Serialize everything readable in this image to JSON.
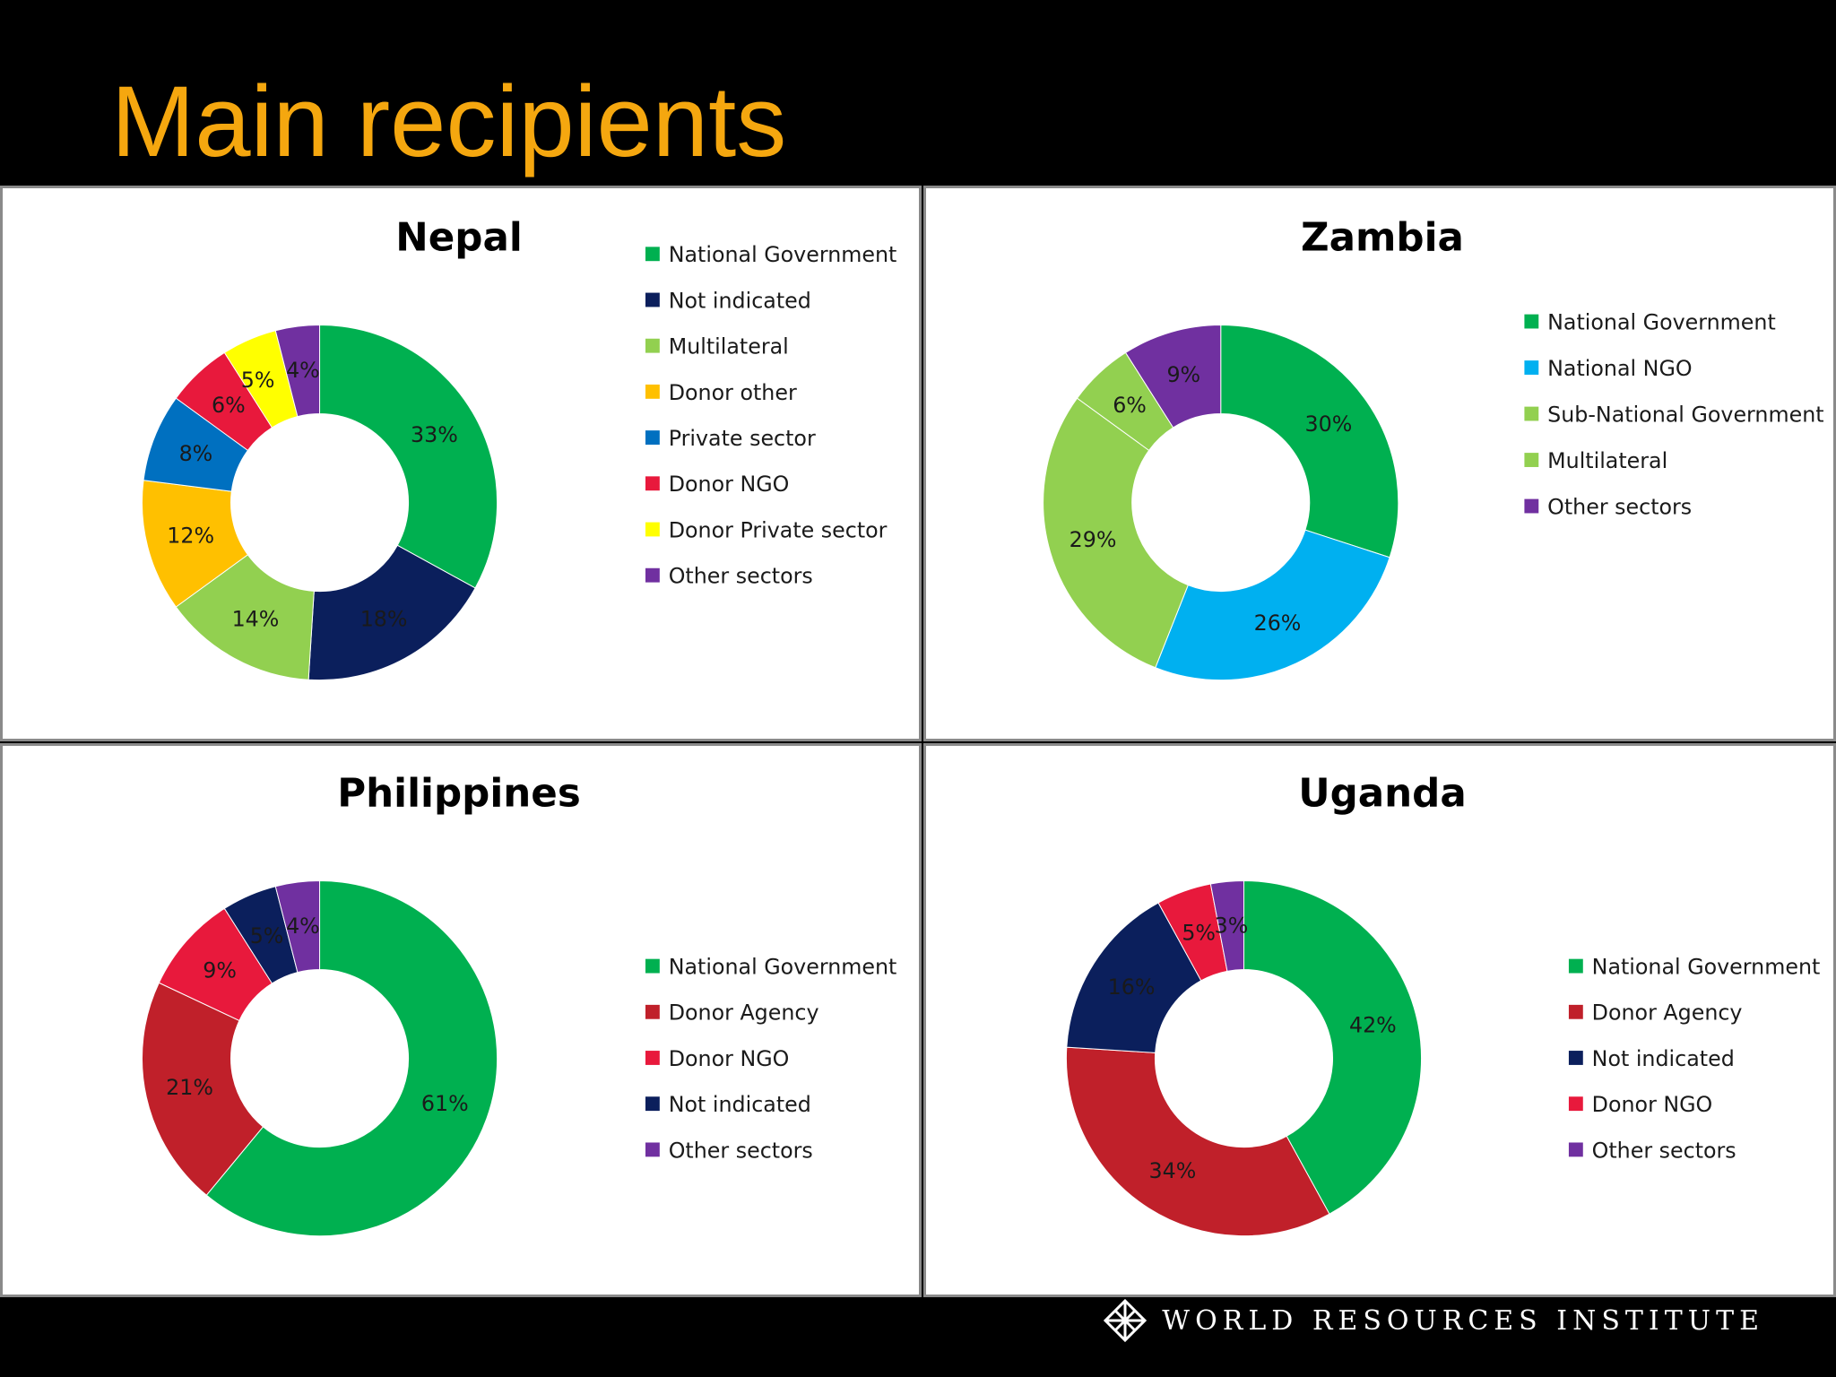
{
  "title": "Main recipients",
  "footer": {
    "logo_text": "WORLD RESOURCES INSTITUTE"
  },
  "colors": {
    "National Government": "#00b050",
    "Not indicated": "#0b1f5c",
    "Multilateral": "#92d050",
    "Donor other": "#ffc000",
    "Private sector": "#0070c0",
    "Donor NGO": "#e8193c",
    "Donor Private sector": "#ffff00",
    "Other sectors": "#7030a0",
    "National NGO": "#00b0f0",
    "Sub-National Government": "#92d050",
    "Donor Agency": "#c0202a"
  },
  "chart_data": [
    {
      "type": "pie",
      "title": "Nepal",
      "legend_position": "right",
      "slices": [
        {
          "label": "National Government",
          "value": 33,
          "text": "33%"
        },
        {
          "label": "Not indicated",
          "value": 18,
          "text": "18%"
        },
        {
          "label": "Multilateral",
          "value": 14,
          "text": "14%"
        },
        {
          "label": "Donor other",
          "value": 12,
          "text": "12%"
        },
        {
          "label": "Private sector",
          "value": 8,
          "text": "8%"
        },
        {
          "label": "Donor NGO",
          "value": 6,
          "text": "6%"
        },
        {
          "label": "Donor Private sector",
          "value": 5,
          "text": "5%"
        },
        {
          "label": "Other sectors",
          "value": 4,
          "text": "4%"
        }
      ]
    },
    {
      "type": "pie",
      "title": "Zambia",
      "legend_position": "right",
      "slices": [
        {
          "label": "National Government",
          "value": 30,
          "text": "30%"
        },
        {
          "label": "National NGO",
          "value": 26,
          "text": "26%"
        },
        {
          "label": "Sub-National Government",
          "value": 29,
          "text": "29%"
        },
        {
          "label": "Multilateral",
          "value": 6,
          "text": "6%"
        },
        {
          "label": "Other sectors",
          "value": 9,
          "text": "9%"
        }
      ]
    },
    {
      "type": "pie",
      "title": "Philippines",
      "legend_position": "right",
      "slices": [
        {
          "label": "National Government",
          "value": 61,
          "text": "61%"
        },
        {
          "label": "Donor Agency",
          "value": 21,
          "text": "21%"
        },
        {
          "label": "Donor NGO",
          "value": 9,
          "text": "9%"
        },
        {
          "label": "Not indicated",
          "value": 5,
          "text": "5%"
        },
        {
          "label": "Other sectors",
          "value": 4,
          "text": "4%"
        }
      ]
    },
    {
      "type": "pie",
      "title": "Uganda",
      "legend_position": "right",
      "slices": [
        {
          "label": "National Government",
          "value": 42,
          "text": "42%"
        },
        {
          "label": "Donor Agency",
          "value": 34,
          "text": "34%"
        },
        {
          "label": "Not indicated",
          "value": 16,
          "text": "16%"
        },
        {
          "label": "Donor NGO",
          "value": 5,
          "text": "5%"
        },
        {
          "label": "Other sectors",
          "value": 3,
          "text": "3%"
        }
      ]
    }
  ]
}
